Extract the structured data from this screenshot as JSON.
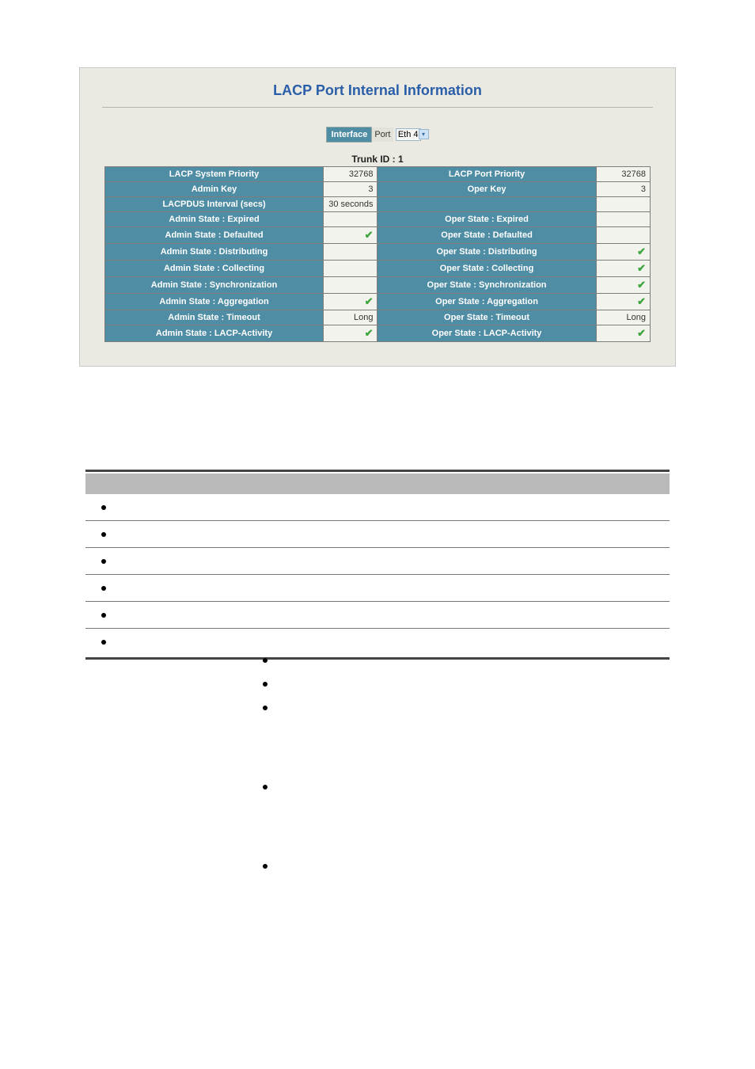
{
  "panel": {
    "title": "LACP Port Internal Information",
    "interface_label": "Interface",
    "port_label": "Port",
    "port_value": "Eth 4",
    "trunk_id_label": "Trunk ID : 1"
  },
  "table": {
    "header_bg": "#4f8da5",
    "header_fg": "#ffffff",
    "value_bg": "#f3f3ed",
    "border_color": "#7d7d7d",
    "rows": [
      {
        "l_label": "LACP System Priority",
        "l_val": "32768",
        "r_label": "LACP Port Priority",
        "r_val": "32768"
      },
      {
        "l_label": "Admin Key",
        "l_val": "3",
        "r_label": "Oper Key",
        "r_val": "3"
      },
      {
        "l_label": "LACPDUS Interval (secs)",
        "l_val": "30 seconds",
        "r_label": "",
        "r_val": ""
      },
      {
        "l_label": "Admin State : Expired",
        "l_val": "",
        "r_label": "Oper State : Expired",
        "r_val": ""
      },
      {
        "l_label": "Admin State : Defaulted",
        "l_val": "✔",
        "r_label": "Oper State : Defaulted",
        "r_val": ""
      },
      {
        "l_label": "Admin State : Distributing",
        "l_val": "",
        "r_label": "Oper State : Distributing",
        "r_val": "✔"
      },
      {
        "l_label": "Admin State : Collecting",
        "l_val": "",
        "r_label": "Oper State : Collecting",
        "r_val": "✔"
      },
      {
        "l_label": "Admin State : Synchronization",
        "l_val": "",
        "r_label": "Oper State : Synchronization",
        "r_val": "✔"
      },
      {
        "l_label": "Admin State : Aggregation",
        "l_val": "✔",
        "r_label": "Oper State : Aggregation",
        "r_val": "✔"
      },
      {
        "l_label": "Admin State : Timeout",
        "l_val": "Long",
        "r_label": "Oper State : Timeout",
        "r_val": "Long"
      },
      {
        "l_label": "Admin State : LACP-Activity",
        "l_val": "✔",
        "r_label": "Oper State : LACP-Activity",
        "r_val": "✔"
      }
    ]
  },
  "checkmark_color": "#3fa63f"
}
